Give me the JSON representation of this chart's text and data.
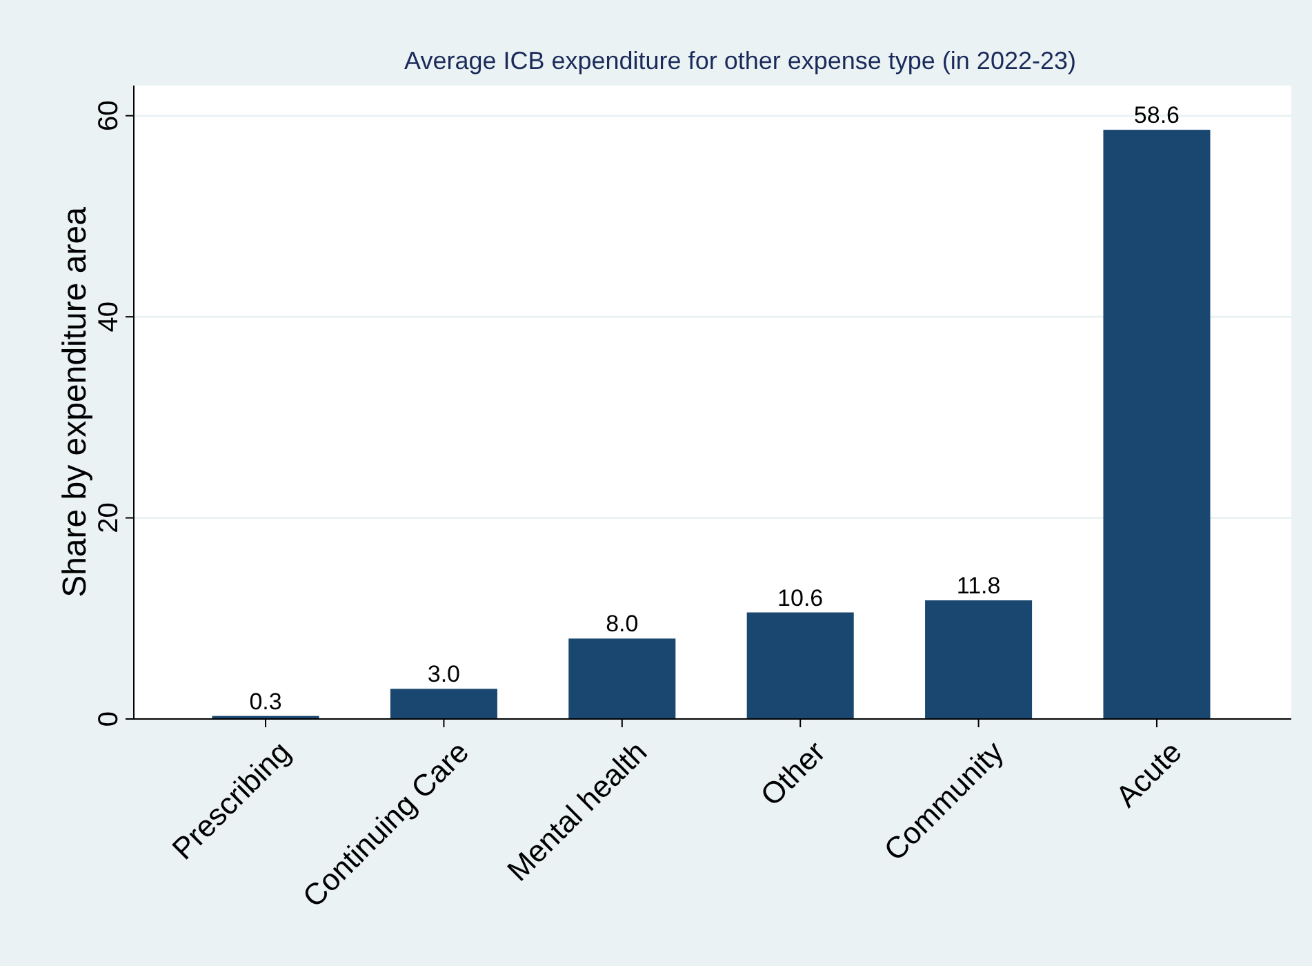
{
  "chart_data": {
    "type": "bar",
    "title": "Average ICB expenditure for other expense type (in 2022-23)",
    "ylabel": "Share by expenditure area",
    "categories": [
      "Prescribing",
      "Continuing Care",
      "Mental health",
      "Other",
      "Community",
      "Acute"
    ],
    "values": [
      0.3,
      3.0,
      8.0,
      10.6,
      11.8,
      58.6
    ],
    "value_labels": [
      "0.3",
      "3.0",
      "8.0",
      "10.6",
      "11.8",
      "58.6"
    ],
    "color": "#1a476f",
    "ylim": [
      0,
      63
    ],
    "yticks": [
      0,
      20,
      40,
      60
    ],
    "grid": "y"
  }
}
